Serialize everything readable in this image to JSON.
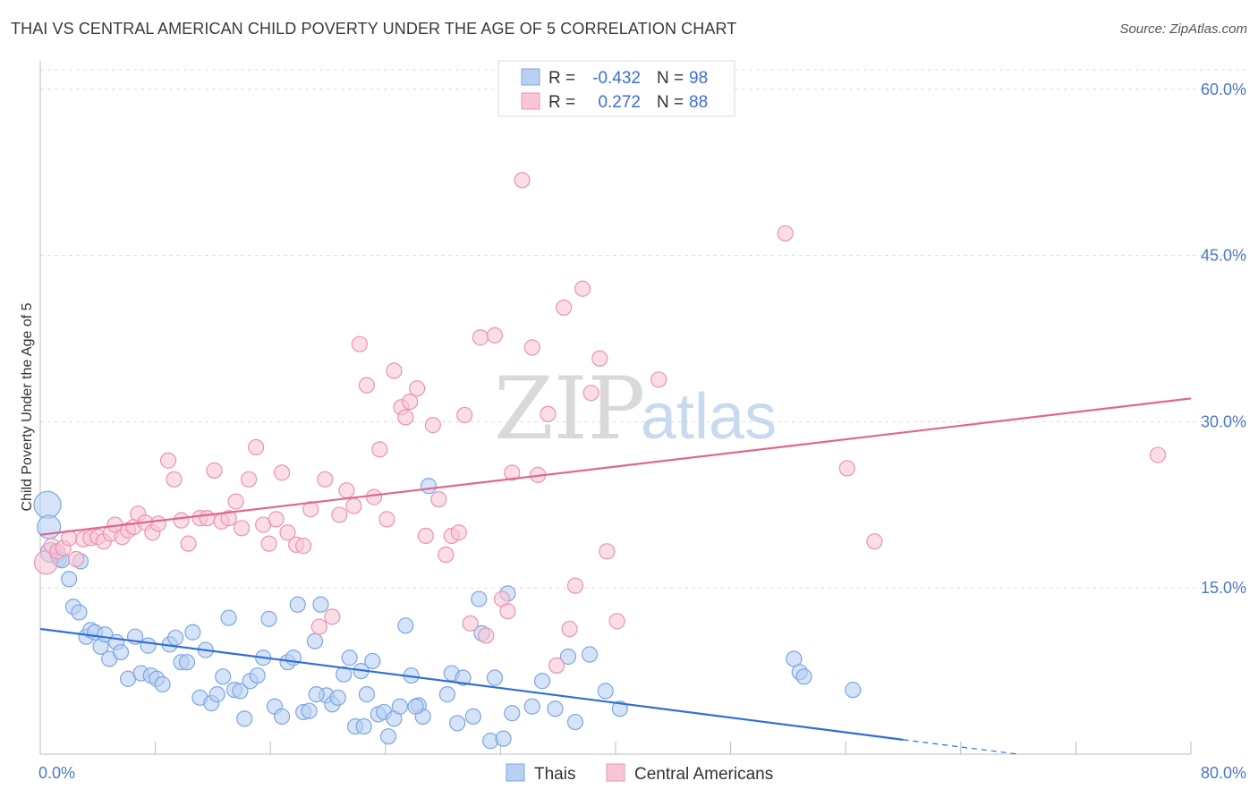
{
  "title": "THAI VS CENTRAL AMERICAN CHILD POVERTY UNDER THE AGE OF 5 CORRELATION CHART",
  "source": "Source: ZipAtlas.com",
  "watermark": {
    "zip": "ZIP",
    "atlas": "atlas"
  },
  "legend": {
    "r_label": "R =",
    "n_label": "N =",
    "rows": [
      {
        "r": "-0.432",
        "n": "98",
        "color": "#b8d0f3",
        "stroke": "#7ea6e0"
      },
      {
        "r": "0.272",
        "n": "88",
        "color": "#f8c6d6",
        "stroke": "#ea94b1"
      }
    ]
  },
  "bottom_legend": [
    {
      "label": "Thais",
      "color": "#b8d0f3",
      "stroke": "#7ea6e0"
    },
    {
      "label": "Central Americans",
      "color": "#f8c6d6",
      "stroke": "#ea94b1"
    }
  ],
  "chart_data": {
    "type": "scatter",
    "title": "THAI VS CENTRAL AMERICAN CHILD POVERTY UNDER THE AGE OF 5 CORRELATION CHART",
    "xlabel": "",
    "ylabel": "Child Poverty Under the Age of 5",
    "xlim": [
      0,
      80
    ],
    "ylim": [
      0,
      62
    ],
    "x_tick_labels": [
      "0.0%",
      "80.0%"
    ],
    "y_ticks": [
      15,
      30,
      45,
      60
    ],
    "y_tick_labels": [
      "15.0%",
      "30.0%",
      "45.0%",
      "60.0%"
    ],
    "grid": true,
    "legend_position": "top-center",
    "series": [
      {
        "name": "Thais",
        "color": "#b8d0f3",
        "stroke": "#7ea6e0",
        "trend_color": "#2f6fd6",
        "trend": {
          "x0": 0,
          "y0": 11.3,
          "x1": 60,
          "y1": 1.3,
          "dash_to_x": 68,
          "dash_to_y": 0
        },
        "points": [
          [
            0.5,
            22.5
          ],
          [
            0.6,
            20.5
          ],
          [
            0.7,
            18.2
          ],
          [
            1.2,
            18.0
          ],
          [
            1.3,
            17.6
          ],
          [
            1.5,
            17.5
          ],
          [
            2.8,
            17.4
          ],
          [
            2.0,
            15.8
          ],
          [
            2.3,
            13.3
          ],
          [
            2.7,
            12.8
          ],
          [
            3.2,
            10.6
          ],
          [
            3.5,
            11.2
          ],
          [
            3.8,
            11.0
          ],
          [
            4.2,
            9.7
          ],
          [
            4.5,
            10.8
          ],
          [
            4.8,
            8.6
          ],
          [
            5.3,
            10.1
          ],
          [
            5.6,
            9.2
          ],
          [
            6.1,
            6.8
          ],
          [
            6.6,
            10.6
          ],
          [
            7.0,
            7.3
          ],
          [
            7.5,
            9.8
          ],
          [
            7.7,
            7.1
          ],
          [
            8.1,
            6.8
          ],
          [
            8.5,
            6.3
          ],
          [
            9.0,
            9.9
          ],
          [
            9.4,
            10.5
          ],
          [
            9.8,
            8.3
          ],
          [
            10.2,
            8.3
          ],
          [
            10.6,
            11.0
          ],
          [
            11.1,
            5.1
          ],
          [
            11.5,
            9.4
          ],
          [
            11.9,
            4.6
          ],
          [
            12.3,
            5.4
          ],
          [
            12.7,
            7.0
          ],
          [
            13.1,
            12.3
          ],
          [
            13.5,
            5.8
          ],
          [
            13.9,
            5.7
          ],
          [
            14.2,
            3.2
          ],
          [
            14.6,
            6.6
          ],
          [
            15.1,
            7.1
          ],
          [
            15.5,
            8.7
          ],
          [
            15.9,
            12.2
          ],
          [
            16.3,
            4.3
          ],
          [
            16.8,
            3.4
          ],
          [
            17.2,
            8.3
          ],
          [
            17.6,
            8.7
          ],
          [
            17.9,
            13.5
          ],
          [
            18.3,
            3.8
          ],
          [
            18.7,
            3.9
          ],
          [
            19.1,
            10.2
          ],
          [
            19.5,
            13.5
          ],
          [
            19.9,
            5.3
          ],
          [
            20.3,
            4.5
          ],
          [
            20.7,
            5.1
          ],
          [
            21.1,
            7.2
          ],
          [
            21.5,
            8.7
          ],
          [
            21.9,
            2.5
          ],
          [
            22.3,
            7.5
          ],
          [
            22.7,
            5.4
          ],
          [
            23.1,
            8.4
          ],
          [
            23.5,
            3.6
          ],
          [
            23.9,
            3.8
          ],
          [
            24.2,
            1.6
          ],
          [
            24.6,
            3.2
          ],
          [
            25.0,
            4.3
          ],
          [
            25.4,
            11.6
          ],
          [
            25.8,
            7.1
          ],
          [
            26.3,
            4.4
          ],
          [
            26.6,
            3.4
          ],
          [
            27.0,
            24.2
          ],
          [
            28.3,
            5.4
          ],
          [
            28.6,
            7.3
          ],
          [
            29.0,
            2.8
          ],
          [
            29.4,
            6.9
          ],
          [
            30.1,
            3.4
          ],
          [
            30.5,
            14.0
          ],
          [
            30.7,
            10.9
          ],
          [
            31.3,
            1.2
          ],
          [
            31.6,
            6.9
          ],
          [
            32.2,
            1.4
          ],
          [
            32.5,
            14.5
          ],
          [
            32.8,
            3.7
          ],
          [
            34.2,
            4.3
          ],
          [
            34.9,
            6.6
          ],
          [
            35.8,
            4.1
          ],
          [
            36.7,
            8.8
          ],
          [
            37.2,
            2.9
          ],
          [
            38.2,
            9.0
          ],
          [
            39.3,
            5.7
          ],
          [
            40.3,
            4.1
          ],
          [
            52.4,
            8.6
          ],
          [
            52.8,
            7.4
          ],
          [
            53.1,
            7.0
          ],
          [
            56.5,
            5.8
          ],
          [
            26.1,
            4.3
          ],
          [
            19.2,
            5.4
          ],
          [
            22.5,
            2.5
          ]
        ]
      },
      {
        "name": "Central Americans",
        "color": "#f8c6d6",
        "stroke": "#ea94b1",
        "trend_color": "#e2668f",
        "trend": {
          "x0": 0,
          "y0": 19.8,
          "x1": 80,
          "y1": 32.1
        },
        "points": [
          [
            0.4,
            17.3
          ],
          [
            0.8,
            18.8
          ],
          [
            1.2,
            18.3
          ],
          [
            1.6,
            18.6
          ],
          [
            2.0,
            19.5
          ],
          [
            2.5,
            17.6
          ],
          [
            3.0,
            19.4
          ],
          [
            3.5,
            19.5
          ],
          [
            4.0,
            19.6
          ],
          [
            4.4,
            19.2
          ],
          [
            4.9,
            19.9
          ],
          [
            5.2,
            20.7
          ],
          [
            5.7,
            19.6
          ],
          [
            6.1,
            20.2
          ],
          [
            6.5,
            20.5
          ],
          [
            6.8,
            21.7
          ],
          [
            7.3,
            20.9
          ],
          [
            7.8,
            20.0
          ],
          [
            8.2,
            20.8
          ],
          [
            8.9,
            26.5
          ],
          [
            9.3,
            24.8
          ],
          [
            9.8,
            21.1
          ],
          [
            10.3,
            19.0
          ],
          [
            11.1,
            21.3
          ],
          [
            11.6,
            21.3
          ],
          [
            12.1,
            25.6
          ],
          [
            12.6,
            21.0
          ],
          [
            13.1,
            21.3
          ],
          [
            13.6,
            22.8
          ],
          [
            14.0,
            20.4
          ],
          [
            14.5,
            24.8
          ],
          [
            15.0,
            27.7
          ],
          [
            15.5,
            20.7
          ],
          [
            15.9,
            19.0
          ],
          [
            16.4,
            21.2
          ],
          [
            16.8,
            25.4
          ],
          [
            17.2,
            20.0
          ],
          [
            17.8,
            18.9
          ],
          [
            18.3,
            18.8
          ],
          [
            18.8,
            22.1
          ],
          [
            19.4,
            11.5
          ],
          [
            19.8,
            24.8
          ],
          [
            20.3,
            12.4
          ],
          [
            20.8,
            21.6
          ],
          [
            21.3,
            23.8
          ],
          [
            21.8,
            22.4
          ],
          [
            22.2,
            37.0
          ],
          [
            22.7,
            33.3
          ],
          [
            23.2,
            23.2
          ],
          [
            23.6,
            27.5
          ],
          [
            24.1,
            21.2
          ],
          [
            24.6,
            34.6
          ],
          [
            25.1,
            31.3
          ],
          [
            25.4,
            30.4
          ],
          [
            25.7,
            31.8
          ],
          [
            26.2,
            33.0
          ],
          [
            26.8,
            19.7
          ],
          [
            27.3,
            29.7
          ],
          [
            27.7,
            23.0
          ],
          [
            28.2,
            18.0
          ],
          [
            28.6,
            19.7
          ],
          [
            29.1,
            20.0
          ],
          [
            29.5,
            30.6
          ],
          [
            29.9,
            11.8
          ],
          [
            30.6,
            37.6
          ],
          [
            31.0,
            10.7
          ],
          [
            31.6,
            37.8
          ],
          [
            32.1,
            14.0
          ],
          [
            32.5,
            12.9
          ],
          [
            32.8,
            25.4
          ],
          [
            33.5,
            51.8
          ],
          [
            34.2,
            36.7
          ],
          [
            34.6,
            25.2
          ],
          [
            35.3,
            30.7
          ],
          [
            35.9,
            8.0
          ],
          [
            36.4,
            40.3
          ],
          [
            36.8,
            11.3
          ],
          [
            37.2,
            15.2
          ],
          [
            37.7,
            42.0
          ],
          [
            38.3,
            32.6
          ],
          [
            38.9,
            35.7
          ],
          [
            39.4,
            18.3
          ],
          [
            40.1,
            12.0
          ],
          [
            43.0,
            33.8
          ],
          [
            51.8,
            47.0
          ],
          [
            56.1,
            25.8
          ],
          [
            58.0,
            19.2
          ],
          [
            77.7,
            27.0
          ]
        ]
      }
    ]
  }
}
